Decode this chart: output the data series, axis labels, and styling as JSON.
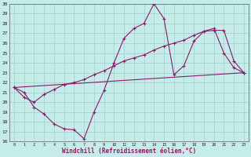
{
  "xlabel": "Windchill (Refroidissement éolien,°C)",
  "xlim": [
    -0.5,
    23.5
  ],
  "ylim": [
    16,
    30
  ],
  "yticks": [
    16,
    17,
    18,
    19,
    20,
    21,
    22,
    23,
    24,
    25,
    26,
    27,
    28,
    29,
    30
  ],
  "xticks": [
    0,
    1,
    2,
    3,
    4,
    5,
    6,
    7,
    8,
    9,
    10,
    11,
    12,
    13,
    14,
    15,
    16,
    17,
    18,
    19,
    20,
    21,
    22,
    23
  ],
  "background_color": "#c5ece9",
  "grid_color": "#9ecfcb",
  "line_color": "#8b1a6b",
  "line1_x": [
    0,
    1,
    2,
    3,
    4,
    5,
    6,
    7,
    8,
    9,
    10,
    11,
    12,
    13,
    14,
    15,
    16,
    17,
    18,
    19,
    20,
    21,
    22,
    23
  ],
  "line1_y": [
    21.5,
    21.0,
    19.5,
    18.8,
    17.8,
    17.3,
    17.2,
    16.3,
    19.0,
    21.2,
    24.0,
    26.5,
    27.5,
    28.0,
    30.0,
    28.5,
    22.8,
    23.7,
    26.2,
    27.2,
    27.5,
    25.0,
    23.5,
    23.0
  ],
  "line2_x": [
    0,
    1,
    2,
    3,
    4,
    5,
    6,
    7,
    8,
    9,
    10,
    11,
    12,
    13,
    14,
    15,
    16,
    17,
    18,
    19,
    20,
    21,
    22,
    23
  ],
  "line2_y": [
    21.5,
    20.5,
    20.0,
    20.8,
    21.3,
    21.8,
    22.0,
    22.3,
    22.8,
    23.2,
    23.7,
    24.2,
    24.5,
    24.8,
    25.3,
    25.7,
    26.0,
    26.3,
    26.8,
    27.2,
    27.3,
    27.3,
    24.2,
    23.0
  ],
  "line3_x": [
    0,
    23
  ],
  "line3_y": [
    21.5,
    23.0
  ]
}
